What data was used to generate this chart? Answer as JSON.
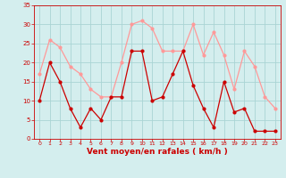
{
  "hours": [
    0,
    1,
    2,
    3,
    4,
    5,
    6,
    7,
    8,
    9,
    10,
    11,
    12,
    13,
    14,
    15,
    16,
    17,
    18,
    19,
    20,
    21,
    22,
    23
  ],
  "vent_moyen": [
    10,
    20,
    15,
    8,
    3,
    8,
    5,
    11,
    11,
    23,
    23,
    10,
    11,
    17,
    23,
    14,
    8,
    3,
    15,
    7,
    8,
    2,
    2,
    2
  ],
  "vent_rafales": [
    17,
    26,
    24,
    19,
    17,
    13,
    11,
    11,
    20,
    30,
    31,
    29,
    23,
    23,
    23,
    30,
    22,
    28,
    22,
    13,
    23,
    19,
    11,
    8
  ],
  "xlabel": "Vent moyen/en rafales ( km/h )",
  "ylim": [
    0,
    35
  ],
  "yticks": [
    0,
    5,
    10,
    15,
    20,
    25,
    30,
    35
  ],
  "bg_color": "#d4eeee",
  "grid_color": "#aad4d4",
  "line_color_moyen": "#cc0000",
  "line_color_rafales": "#ff9999",
  "xlabel_color": "#cc0000",
  "tick_color": "#cc0000"
}
